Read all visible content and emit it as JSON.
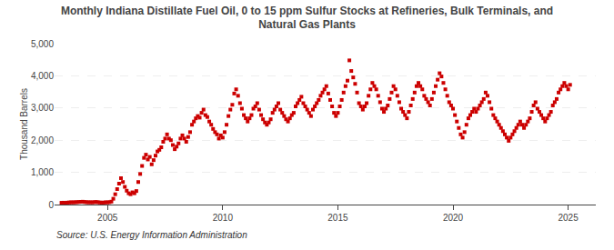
{
  "chart_data": {
    "type": "scatter",
    "title": "Monthly Indiana Distillate Fuel Oil, 0 to 15 ppm Sulfur Stocks at Refineries, Bulk Terminals, and\nNatural Gas Plants",
    "ylabel": "Thousand Barrels",
    "annotations": [
      "Source: U.S. Energy Information Administration"
    ],
    "color": "#cc0000",
    "marker": "square",
    "grid": true,
    "xlim": [
      2002.7,
      2026.2
    ],
    "xticks": [
      2005,
      2010,
      2015,
      2020,
      2025
    ],
    "ylim": [
      0,
      5000
    ],
    "yticks": [
      0,
      {
        "value": 1000,
        "label": "1,000"
      },
      {
        "value": 2000,
        "label": "2,000"
      },
      {
        "value": 3000,
        "label": "3,000"
      },
      {
        "value": 4000,
        "label": "4,000"
      },
      {
        "value": 5000,
        "label": "5,000"
      }
    ],
    "x": [
      2003.0,
      2003.083,
      2003.167,
      2003.25,
      2003.333,
      2003.417,
      2003.5,
      2003.583,
      2003.667,
      2003.75,
      2003.833,
      2003.917,
      2004.0,
      2004.083,
      2004.167,
      2004.25,
      2004.333,
      2004.417,
      2004.5,
      2004.583,
      2004.667,
      2004.75,
      2004.833,
      2004.917,
      2005.0,
      2005.083,
      2005.167,
      2005.25,
      2005.333,
      2005.417,
      2005.5,
      2005.583,
      2005.667,
      2005.75,
      2005.833,
      2005.917,
      2006.0,
      2006.083,
      2006.167,
      2006.25,
      2006.333,
      2006.417,
      2006.5,
      2006.583,
      2006.667,
      2006.75,
      2006.833,
      2006.917,
      2007.0,
      2007.083,
      2007.167,
      2007.25,
      2007.333,
      2007.417,
      2007.5,
      2007.583,
      2007.667,
      2007.75,
      2007.833,
      2007.917,
      2008.0,
      2008.083,
      2008.167,
      2008.25,
      2008.333,
      2008.417,
      2008.5,
      2008.583,
      2008.667,
      2008.75,
      2008.833,
      2008.917,
      2009.0,
      2009.083,
      2009.167,
      2009.25,
      2009.333,
      2009.417,
      2009.5,
      2009.583,
      2009.667,
      2009.75,
      2009.833,
      2009.917,
      2010.0,
      2010.083,
      2010.167,
      2010.25,
      2010.333,
      2010.417,
      2010.5,
      2010.583,
      2010.667,
      2010.75,
      2010.833,
      2010.917,
      2011.0,
      2011.083,
      2011.167,
      2011.25,
      2011.333,
      2011.417,
      2011.5,
      2011.583,
      2011.667,
      2011.75,
      2011.833,
      2011.917,
      2012.0,
      2012.083,
      2012.167,
      2012.25,
      2012.333,
      2012.417,
      2012.5,
      2012.583,
      2012.667,
      2012.75,
      2012.833,
      2012.917,
      2013.0,
      2013.083,
      2013.167,
      2013.25,
      2013.333,
      2013.417,
      2013.5,
      2013.583,
      2013.667,
      2013.75,
      2013.833,
      2013.917,
      2014.0,
      2014.083,
      2014.167,
      2014.25,
      2014.333,
      2014.417,
      2014.5,
      2014.583,
      2014.667,
      2014.75,
      2014.833,
      2014.917,
      2015.0,
      2015.083,
      2015.167,
      2015.25,
      2015.333,
      2015.417,
      2015.5,
      2015.583,
      2015.667,
      2015.75,
      2015.833,
      2015.917,
      2016.0,
      2016.083,
      2016.167,
      2016.25,
      2016.333,
      2016.417,
      2016.5,
      2016.583,
      2016.667,
      2016.75,
      2016.833,
      2016.917,
      2017.0,
      2017.083,
      2017.167,
      2017.25,
      2017.333,
      2017.417,
      2017.5,
      2017.583,
      2017.667,
      2017.75,
      2017.833,
      2017.917,
      2018.0,
      2018.083,
      2018.167,
      2018.25,
      2018.333,
      2018.417,
      2018.5,
      2018.583,
      2018.667,
      2018.75,
      2018.833,
      2018.917,
      2019.0,
      2019.083,
      2019.167,
      2019.25,
      2019.333,
      2019.417,
      2019.5,
      2019.583,
      2019.667,
      2019.75,
      2019.833,
      2019.917,
      2020.0,
      2020.083,
      2020.167,
      2020.25,
      2020.333,
      2020.417,
      2020.5,
      2020.583,
      2020.667,
      2020.75,
      2020.833,
      2020.917,
      2021.0,
      2021.083,
      2021.167,
      2021.25,
      2021.333,
      2021.417,
      2021.5,
      2021.583,
      2021.667,
      2021.75,
      2021.833,
      2021.917,
      2022.0,
      2022.083,
      2022.167,
      2022.25,
      2022.333,
      2022.417,
      2022.5,
      2022.583,
      2022.667,
      2022.75,
      2022.833,
      2022.917,
      2023.0,
      2023.083,
      2023.167,
      2023.25,
      2023.333,
      2023.417,
      2023.5,
      2023.583,
      2023.667,
      2023.75,
      2023.833,
      2023.917,
      2024.0,
      2024.083,
      2024.167,
      2024.25,
      2024.333,
      2024.417,
      2024.5,
      2024.583,
      2024.667,
      2024.75,
      2024.833,
      2024.917,
      2025.0,
      2025.083
    ],
    "values": [
      55,
      58,
      52,
      60,
      65,
      70,
      68,
      72,
      75,
      80,
      85,
      88,
      80,
      75,
      70,
      72,
      68,
      75,
      80,
      72,
      65,
      60,
      62,
      70,
      68,
      75,
      90,
      180,
      320,
      480,
      650,
      820,
      700,
      550,
      430,
      350,
      320,
      380,
      350,
      420,
      700,
      950,
      1200,
      1450,
      1550,
      1400,
      1480,
      1250,
      1380,
      1520,
      1650,
      1700,
      1780,
      1950,
      2050,
      2180,
      2050,
      2000,
      1850,
      1720,
      1800,
      1900,
      2050,
      2150,
      2050,
      1950,
      2100,
      2250,
      2480,
      2580,
      2680,
      2750,
      2700,
      2850,
      2950,
      2780,
      2720,
      2580,
      2480,
      2350,
      2250,
      2180,
      2050,
      2150,
      2080,
      2250,
      2480,
      2750,
      2950,
      3100,
      3450,
      3580,
      3380,
      3150,
      2980,
      2780,
      2680,
      2580,
      2680,
      2780,
      2980,
      3050,
      3150,
      2950,
      2780,
      2650,
      2550,
      2480,
      2550,
      2650,
      2850,
      2950,
      3050,
      3150,
      2950,
      2850,
      2750,
      2650,
      2580,
      2680,
      2780,
      2850,
      3050,
      3150,
      3250,
      3350,
      3150,
      3050,
      2950,
      2850,
      2750,
      2950,
      3050,
      3150,
      3250,
      3380,
      3480,
      3580,
      3680,
      3450,
      3250,
      3050,
      2850,
      2750,
      2850,
      3050,
      3250,
      3480,
      3680,
      3850,
      4480,
      4150,
      3950,
      3750,
      3480,
      3150,
      3050,
      2950,
      3050,
      3150,
      3380,
      3580,
      3780,
      3680,
      3580,
      3380,
      3180,
      2980,
      2880,
      2980,
      3080,
      3280,
      3480,
      3680,
      3580,
      3380,
      3180,
      2980,
      2880,
      2780,
      2680,
      2880,
      3080,
      3280,
      3480,
      3680,
      3780,
      3680,
      3580,
      3380,
      3280,
      3180,
      3080,
      3280,
      3480,
      3680,
      3880,
      4080,
      3980,
      3780,
      3580,
      3380,
      3180,
      3080,
      2980,
      2780,
      2580,
      2380,
      2180,
      2080,
      2250,
      2480,
      2680,
      2780,
      2880,
      2980,
      2880,
      2980,
      3080,
      3180,
      3280,
      3480,
      3380,
      3180,
      2980,
      2780,
      2680,
      2580,
      2480,
      2380,
      2280,
      2180,
      2080,
      1980,
      2080,
      2180,
      2280,
      2380,
      2480,
      2580,
      2480,
      2380,
      2480,
      2580,
      2680,
      2880,
      3080,
      3180,
      2980,
      2880,
      2780,
      2680,
      2580,
      2680,
      2780,
      2880,
      3080,
      3180,
      3280,
      3480,
      3580,
      3680,
      3780,
      3680,
      3580,
      3720
    ]
  }
}
